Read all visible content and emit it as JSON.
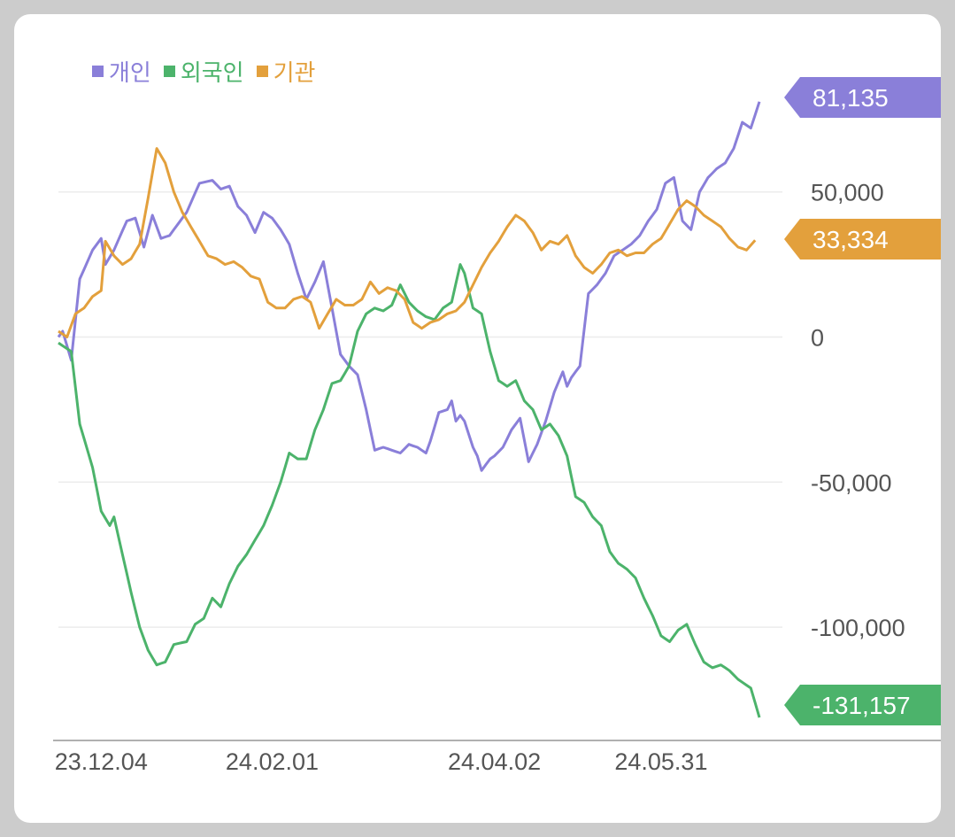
{
  "chart_data": {
    "type": "line",
    "x_ticks": [
      "23.12.04",
      "24.02.01",
      "24.04.02",
      "24.05.31"
    ],
    "x_tick_index": [
      10,
      50,
      102,
      141
    ],
    "y_ticks": [
      50000,
      0,
      -50000,
      -100000
    ],
    "y_tick_labels": [
      "50,000",
      "0",
      "-50,000",
      "-100,000"
    ],
    "ylim": [
      -136000,
      89000
    ],
    "n_points": 155,
    "grid": true,
    "legend_position": "top-left",
    "series": [
      {
        "name": "개인",
        "color": "#8A7FD9",
        "last_value": 81135,
        "last_label": "81,135",
        "anchors": [
          [
            0,
            0
          ],
          [
            1,
            2000
          ],
          [
            3,
            -8000
          ],
          [
            5,
            20000
          ],
          [
            8,
            30000
          ],
          [
            10,
            34000
          ],
          [
            11,
            25000
          ],
          [
            13,
            30000
          ],
          [
            16,
            40000
          ],
          [
            18,
            41000
          ],
          [
            20,
            31000
          ],
          [
            22,
            42000
          ],
          [
            24,
            34000
          ],
          [
            26,
            35000
          ],
          [
            30,
            43000
          ],
          [
            33,
            53000
          ],
          [
            36,
            54000
          ],
          [
            38,
            51000
          ],
          [
            40,
            52000
          ],
          [
            42,
            45000
          ],
          [
            44,
            42000
          ],
          [
            46,
            36000
          ],
          [
            48,
            43000
          ],
          [
            50,
            41000
          ],
          [
            52,
            37000
          ],
          [
            54,
            32000
          ],
          [
            56,
            22000
          ],
          [
            58,
            13000
          ],
          [
            60,
            19000
          ],
          [
            62,
            26000
          ],
          [
            64,
            10000
          ],
          [
            66,
            -6000
          ],
          [
            68,
            -10000
          ],
          [
            70,
            -13000
          ],
          [
            72,
            -25000
          ],
          [
            74,
            -39000
          ],
          [
            76,
            -38000
          ],
          [
            78,
            -39000
          ],
          [
            80,
            -40000
          ],
          [
            82,
            -37000
          ],
          [
            84,
            -38000
          ],
          [
            86,
            -40000
          ],
          [
            87,
            -36000
          ],
          [
            89,
            -26000
          ],
          [
            91,
            -25000
          ],
          [
            92,
            -22000
          ],
          [
            93,
            -29000
          ],
          [
            94,
            -27000
          ],
          [
            95,
            -29000
          ],
          [
            97,
            -38000
          ],
          [
            98,
            -41000
          ],
          [
            99,
            -46000
          ],
          [
            101,
            -42000
          ],
          [
            102,
            -41000
          ],
          [
            104,
            -38000
          ],
          [
            106,
            -32000
          ],
          [
            108,
            -28000
          ],
          [
            110,
            -43000
          ],
          [
            112,
            -37000
          ],
          [
            114,
            -29000
          ],
          [
            116,
            -19000
          ],
          [
            118,
            -12000
          ],
          [
            119,
            -17000
          ],
          [
            120,
            -14000
          ],
          [
            122,
            -10000
          ],
          [
            124,
            15000
          ],
          [
            126,
            18000
          ],
          [
            128,
            22000
          ],
          [
            130,
            28000
          ],
          [
            132,
            30000
          ],
          [
            134,
            32000
          ],
          [
            136,
            35000
          ],
          [
            138,
            40000
          ],
          [
            140,
            44000
          ],
          [
            142,
            53000
          ],
          [
            144,
            55000
          ],
          [
            146,
            40000
          ],
          [
            148,
            37000
          ],
          [
            150,
            50000
          ],
          [
            152,
            55000
          ],
          [
            154,
            58000
          ],
          [
            156,
            60000
          ],
          [
            158,
            65000
          ],
          [
            160,
            74000
          ],
          [
            162,
            72000
          ],
          [
            164,
            81135
          ]
        ]
      },
      {
        "name": "외국인",
        "color": "#4CB36B",
        "last_value": -131157,
        "last_label": "-131,157",
        "anchors": [
          [
            0,
            -2000
          ],
          [
            3,
            -5000
          ],
          [
            5,
            -30000
          ],
          [
            8,
            -45000
          ],
          [
            10,
            -60000
          ],
          [
            12,
            -65000
          ],
          [
            13,
            -62000
          ],
          [
            15,
            -75000
          ],
          [
            17,
            -88000
          ],
          [
            19,
            -100000
          ],
          [
            21,
            -108000
          ],
          [
            23,
            -113000
          ],
          [
            25,
            -112000
          ],
          [
            27,
            -106000
          ],
          [
            30,
            -105000
          ],
          [
            32,
            -99000
          ],
          [
            34,
            -97000
          ],
          [
            36,
            -90000
          ],
          [
            38,
            -93000
          ],
          [
            40,
            -85000
          ],
          [
            42,
            -79000
          ],
          [
            44,
            -75000
          ],
          [
            46,
            -70000
          ],
          [
            48,
            -65000
          ],
          [
            50,
            -58000
          ],
          [
            52,
            -50000
          ],
          [
            54,
            -40000
          ],
          [
            56,
            -42000
          ],
          [
            58,
            -42000
          ],
          [
            60,
            -32000
          ],
          [
            62,
            -25000
          ],
          [
            64,
            -16000
          ],
          [
            66,
            -15000
          ],
          [
            68,
            -10000
          ],
          [
            70,
            2000
          ],
          [
            72,
            8000
          ],
          [
            74,
            10000
          ],
          [
            76,
            9000
          ],
          [
            78,
            11000
          ],
          [
            80,
            18000
          ],
          [
            82,
            12000
          ],
          [
            84,
            9000
          ],
          [
            86,
            7000
          ],
          [
            88,
            6000
          ],
          [
            90,
            10000
          ],
          [
            92,
            12000
          ],
          [
            94,
            25000
          ],
          [
            95,
            22000
          ],
          [
            97,
            10000
          ],
          [
            99,
            8000
          ],
          [
            101,
            -5000
          ],
          [
            103,
            -15000
          ],
          [
            105,
            -17000
          ],
          [
            107,
            -15000
          ],
          [
            109,
            -22000
          ],
          [
            111,
            -25000
          ],
          [
            113,
            -32000
          ],
          [
            115,
            -30000
          ],
          [
            117,
            -34000
          ],
          [
            119,
            -41000
          ],
          [
            121,
            -55000
          ],
          [
            123,
            -57000
          ],
          [
            125,
            -62000
          ],
          [
            127,
            -65000
          ],
          [
            129,
            -74000
          ],
          [
            131,
            -78000
          ],
          [
            133,
            -80000
          ],
          [
            135,
            -83000
          ],
          [
            137,
            -90000
          ],
          [
            139,
            -96000
          ],
          [
            141,
            -103000
          ],
          [
            143,
            -105000
          ],
          [
            145,
            -101000
          ],
          [
            147,
            -99000
          ],
          [
            149,
            -106000
          ],
          [
            151,
            -112000
          ],
          [
            153,
            -114000
          ],
          [
            155,
            -113000
          ],
          [
            157,
            -115000
          ],
          [
            159,
            -118000
          ],
          [
            161,
            -120000
          ],
          [
            162,
            -121000
          ],
          [
            164,
            -131157
          ]
        ]
      },
      {
        "name": "기관",
        "color": "#E3A03C",
        "last_value": 33334,
        "last_label": "33,334",
        "anchors": [
          [
            0,
            2000
          ],
          [
            2,
            0
          ],
          [
            4,
            8000
          ],
          [
            6,
            10000
          ],
          [
            8,
            14000
          ],
          [
            10,
            16000
          ],
          [
            11,
            33000
          ],
          [
            13,
            28000
          ],
          [
            15,
            25000
          ],
          [
            17,
            27000
          ],
          [
            19,
            32000
          ],
          [
            21,
            48000
          ],
          [
            23,
            65000
          ],
          [
            25,
            60000
          ],
          [
            27,
            50000
          ],
          [
            29,
            43000
          ],
          [
            31,
            38000
          ],
          [
            33,
            33000
          ],
          [
            35,
            28000
          ],
          [
            37,
            27000
          ],
          [
            39,
            25000
          ],
          [
            41,
            26000
          ],
          [
            43,
            24000
          ],
          [
            45,
            21000
          ],
          [
            47,
            20000
          ],
          [
            49,
            12000
          ],
          [
            51,
            10000
          ],
          [
            53,
            10000
          ],
          [
            55,
            13000
          ],
          [
            57,
            14000
          ],
          [
            59,
            12000
          ],
          [
            61,
            3000
          ],
          [
            63,
            8000
          ],
          [
            65,
            13000
          ],
          [
            67,
            11000
          ],
          [
            69,
            11000
          ],
          [
            71,
            13000
          ],
          [
            73,
            19000
          ],
          [
            75,
            15000
          ],
          [
            77,
            17000
          ],
          [
            79,
            16000
          ],
          [
            81,
            13000
          ],
          [
            83,
            5000
          ],
          [
            85,
            3000
          ],
          [
            87,
            5000
          ],
          [
            89,
            6000
          ],
          [
            91,
            8000
          ],
          [
            93,
            9000
          ],
          [
            95,
            12000
          ],
          [
            97,
            18000
          ],
          [
            99,
            24000
          ],
          [
            101,
            29000
          ],
          [
            103,
            33000
          ],
          [
            105,
            38000
          ],
          [
            107,
            42000
          ],
          [
            109,
            40000
          ],
          [
            111,
            36000
          ],
          [
            113,
            30000
          ],
          [
            115,
            33000
          ],
          [
            117,
            32000
          ],
          [
            119,
            35000
          ],
          [
            121,
            28000
          ],
          [
            123,
            24000
          ],
          [
            125,
            22000
          ],
          [
            127,
            25000
          ],
          [
            129,
            29000
          ],
          [
            131,
            30000
          ],
          [
            133,
            28000
          ],
          [
            135,
            29000
          ],
          [
            137,
            29000
          ],
          [
            139,
            32000
          ],
          [
            141,
            34000
          ],
          [
            143,
            39000
          ],
          [
            145,
            44000
          ],
          [
            147,
            47000
          ],
          [
            149,
            45000
          ],
          [
            151,
            42000
          ],
          [
            153,
            40000
          ],
          [
            155,
            38000
          ],
          [
            157,
            34000
          ],
          [
            159,
            31000
          ],
          [
            161,
            30000
          ],
          [
            163,
            33334
          ]
        ]
      }
    ]
  }
}
